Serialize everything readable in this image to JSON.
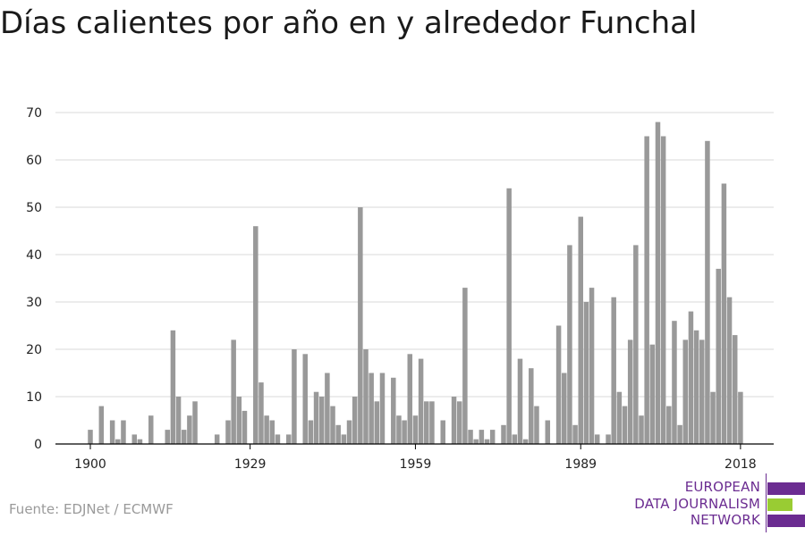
{
  "title": "Días calientes por año en y alrededor Funchal",
  "source": "Fuente: EDJNet / ECMWF",
  "logo": {
    "lines": [
      "EUROPEAN",
      "DATA JOURNALISM",
      "NETWORK"
    ],
    "colors": {
      "purple": "#6b2c91",
      "green": "#99cc33"
    }
  },
  "colors": {
    "bar": "#999999",
    "grid": "#d9d9d9",
    "axis": "#000000"
  },
  "chart_data": {
    "type": "bar",
    "title": "Días calientes por año en y alrededor Funchal",
    "xlabel": "",
    "ylabel": "",
    "x_ticks": [
      "1900",
      "1929",
      "1959",
      "1989",
      "2018"
    ],
    "y_ticks": [
      0,
      10,
      20,
      30,
      40,
      50,
      60,
      70
    ],
    "ylim": [
      0,
      70
    ],
    "grid": true,
    "categories": [
      1900,
      1901,
      1902,
      1903,
      1904,
      1905,
      1906,
      1907,
      1908,
      1909,
      1910,
      1911,
      1912,
      1913,
      1914,
      1915,
      1916,
      1917,
      1918,
      1919,
      1920,
      1921,
      1922,
      1923,
      1924,
      1925,
      1926,
      1927,
      1928,
      1929,
      1930,
      1931,
      1932,
      1933,
      1934,
      1935,
      1936,
      1937,
      1938,
      1939,
      1940,
      1941,
      1942,
      1943,
      1944,
      1945,
      1946,
      1947,
      1948,
      1949,
      1950,
      1951,
      1952,
      1953,
      1954,
      1955,
      1956,
      1957,
      1958,
      1959,
      1960,
      1961,
      1962,
      1963,
      1964,
      1965,
      1966,
      1967,
      1968,
      1969,
      1970,
      1971,
      1972,
      1973,
      1974,
      1975,
      1976,
      1977,
      1978,
      1979,
      1980,
      1981,
      1982,
      1983,
      1984,
      1985,
      1986,
      1987,
      1988,
      1989,
      1990,
      1991,
      1992,
      1993,
      1994,
      1995,
      1996,
      1997,
      1998,
      1999,
      2000,
      2001,
      2002,
      2003,
      2004,
      2005,
      2006,
      2007,
      2008,
      2009,
      2010,
      2011,
      2012,
      2013,
      2014,
      2015,
      2016,
      2017,
      2018
    ],
    "values": [
      3,
      0,
      8,
      0,
      5,
      1,
      5,
      0,
      2,
      1,
      0,
      6,
      0,
      0,
      3,
      24,
      10,
      3,
      6,
      9,
      0,
      0,
      0,
      2,
      0,
      5,
      22,
      10,
      7,
      0,
      46,
      13,
      6,
      5,
      2,
      0,
      2,
      20,
      0,
      19,
      5,
      11,
      10,
      15,
      8,
      4,
      2,
      5,
      10,
      50,
      20,
      15,
      9,
      15,
      0,
      14,
      6,
      5,
      19,
      6,
      18,
      9,
      9,
      0,
      5,
      0,
      10,
      9,
      33,
      3,
      1,
      3,
      1,
      3,
      0,
      4,
      54,
      2,
      18,
      1,
      16,
      8,
      0,
      5,
      0,
      25,
      15,
      42,
      4,
      48,
      30,
      33,
      2,
      0,
      2,
      31,
      11,
      8,
      22,
      42,
      6,
      65,
      21,
      68,
      65,
      8,
      26,
      4,
      22,
      28,
      24,
      22,
      64,
      11,
      37,
      55,
      31,
      23,
      11
    ]
  }
}
